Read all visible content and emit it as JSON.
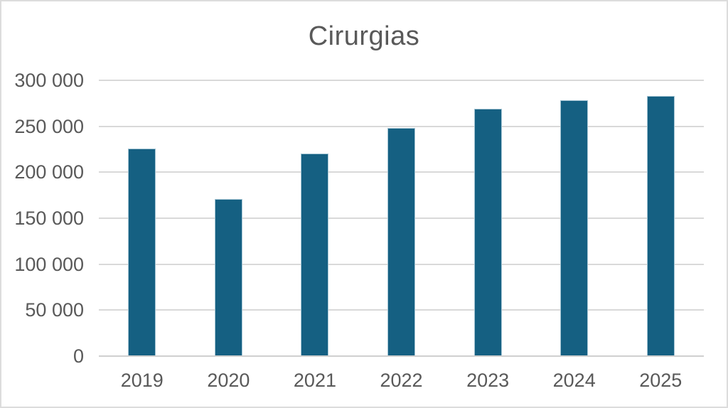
{
  "title": "Cirurgias",
  "colors": {
    "bar_fill": "#156082",
    "bar_border": "#a3c4d3",
    "gridline": "#d9d9d9",
    "axis_line": "#d0d0d0",
    "text": "#595959",
    "canvas_border": "#dcdcdc",
    "background": "#ffffff"
  },
  "chart_data": {
    "type": "bar",
    "title": "Cirurgias",
    "categories": [
      "2019",
      "2020",
      "2021",
      "2022",
      "2023",
      "2024",
      "2025"
    ],
    "values": [
      226000,
      171000,
      220000,
      248000,
      269000,
      278000,
      283000
    ],
    "xlabel": "",
    "ylabel": "",
    "ylim": [
      0,
      300000
    ],
    "ytick_interval": 50000,
    "yticks": [
      {
        "value": 0,
        "label": "0"
      },
      {
        "value": 50000,
        "label": "50 000"
      },
      {
        "value": 100000,
        "label": "100 000"
      },
      {
        "value": 150000,
        "label": "150 000"
      },
      {
        "value": 200000,
        "label": "200 000"
      },
      {
        "value": 250000,
        "label": "250 000"
      },
      {
        "value": 300000,
        "label": "300 000"
      }
    ],
    "grid": true,
    "legend": false
  }
}
